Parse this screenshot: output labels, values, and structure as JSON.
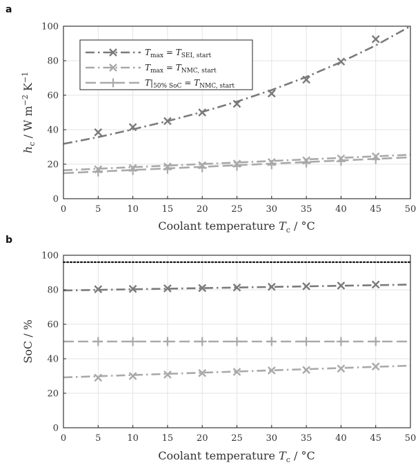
{
  "colors": {
    "dark": "#7a7a7a",
    "light": "#a9a9a9",
    "dotted": "#111111",
    "grid": "#e3e3e3"
  },
  "chart_data": [
    {
      "panel_label": "a",
      "type": "line",
      "xlabel": "Coolant temperature T_c / °C",
      "ylabel": "h_c / W m^-2 K^-1",
      "xlim": [
        0,
        50
      ],
      "ylim": [
        0,
        100
      ],
      "xticks": [
        0,
        5,
        10,
        15,
        20,
        25,
        30,
        35,
        40,
        45,
        50
      ],
      "yticks": [
        0,
        20,
        40,
        60,
        80,
        100
      ],
      "grid": true,
      "legend_position": "top-left",
      "series": [
        {
          "name": "T_max = T_SEI,start",
          "style": "dashdot",
          "marker": "x",
          "color": "#7a7a7a",
          "points_x": [
            5,
            10,
            15,
            20,
            25,
            30,
            35,
            40,
            45
          ],
          "points_y": [
            38.5,
            41.5,
            45,
            50,
            55,
            61,
            69,
            79.5,
            92.5
          ],
          "curve_x": [
            0,
            5,
            10,
            15,
            20,
            25,
            30,
            35,
            40,
            45,
            50
          ],
          "curve_y": [
            31.8,
            35.7,
            40.2,
            45.0,
            50.3,
            56.3,
            63.0,
            70.6,
            79.2,
            88.9,
            100
          ]
        },
        {
          "name": "T_max = T_NMC,start",
          "style": "dashdot",
          "marker": "x",
          "color": "#a9a9a9",
          "points_x": [
            5,
            10,
            15,
            20,
            25,
            30,
            35,
            40,
            45
          ],
          "points_y": [
            17,
            17.8,
            18.6,
            19.4,
            20.3,
            21.2,
            22.2,
            23.3,
            24.5
          ],
          "curve_x": [
            0,
            50
          ],
          "curve_y": [
            16.5,
            25.5
          ]
        },
        {
          "name": "T|50% SoC = T_NMC,start",
          "style": "dashed",
          "marker": "+",
          "color": "#a9a9a9",
          "points_x": [
            5,
            10,
            15,
            20,
            25,
            30,
            35,
            40,
            45
          ],
          "points_y": [
            15.5,
            16.3,
            17.1,
            17.9,
            18.8,
            19.7,
            20.7,
            21.7,
            22.8
          ],
          "curve_x": [
            0,
            50
          ],
          "curve_y": [
            14.8,
            24
          ]
        }
      ]
    },
    {
      "panel_label": "b",
      "type": "line",
      "xlabel": "Coolant temperature T_c / °C",
      "ylabel": "SoC / %",
      "xlim": [
        0,
        50
      ],
      "ylim": [
        0,
        100
      ],
      "xticks": [
        0,
        5,
        10,
        15,
        20,
        25,
        30,
        35,
        40,
        45,
        50
      ],
      "yticks": [
        0,
        20,
        40,
        60,
        80,
        100
      ],
      "grid": true,
      "series": [
        {
          "style": "dotted",
          "marker": "none",
          "color": "#111111",
          "points_x": [],
          "points_y": [],
          "curve_x": [
            0,
            50
          ],
          "curve_y": [
            96,
            96
          ]
        },
        {
          "style": "dashdot",
          "marker": "x",
          "color": "#7a7a7a",
          "points_x": [
            5,
            10,
            15,
            20,
            25,
            30,
            35,
            40,
            45
          ],
          "points_y": [
            80.3,
            80.5,
            80.8,
            81,
            81.3,
            81.7,
            82,
            82.4,
            83
          ],
          "curve_x": [
            0,
            50
          ],
          "curve_y": [
            79.6,
            83
          ]
        },
        {
          "style": "dashed",
          "marker": "+",
          "color": "#a9a9a9",
          "points_x": [
            5,
            10,
            15,
            20,
            25,
            30,
            35,
            40,
            45
          ],
          "points_y": [
            50,
            50,
            50,
            50,
            50,
            50,
            50,
            50,
            50
          ],
          "curve_x": [
            0,
            50
          ],
          "curve_y": [
            50,
            50
          ]
        },
        {
          "style": "dashdot",
          "marker": "x",
          "color": "#a9a9a9",
          "points_x": [
            5,
            10,
            15,
            20,
            25,
            30,
            35,
            40,
            45
          ],
          "points_y": [
            29,
            30,
            30.8,
            31.7,
            32.4,
            33.2,
            33.5,
            34.3,
            35.5
          ],
          "curve_x": [
            0,
            50
          ],
          "curve_y": [
            29.2,
            36
          ]
        }
      ]
    }
  ]
}
